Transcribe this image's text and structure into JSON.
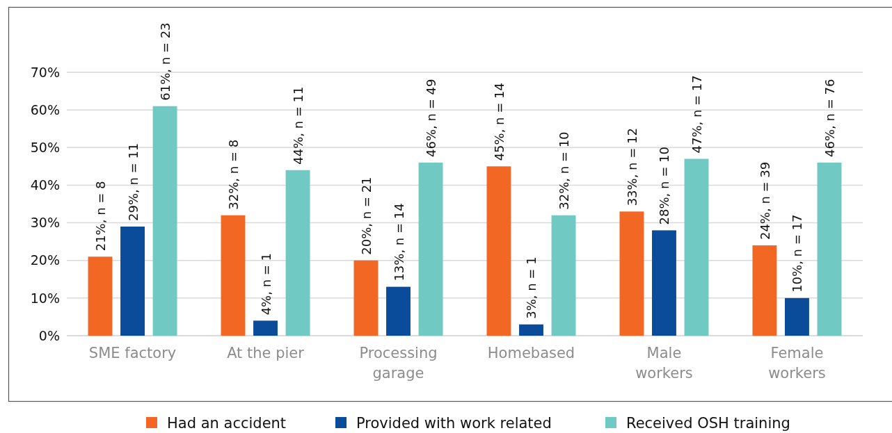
{
  "chart_data": {
    "type": "bar",
    "categories": [
      "SME factory",
      "At the pier",
      "Processing garage",
      "Homebased",
      "Male workers",
      "Female workers"
    ],
    "series": [
      {
        "name": "Had an accident",
        "color": "#f26724",
        "values": [
          21,
          32,
          20,
          45,
          33,
          24
        ],
        "value_labels": [
          "21%, n = 8",
          "32%, n = 8",
          "20%, n = 21",
          "45%, n = 14",
          "33%, n = 12",
          "24%, n = 39"
        ]
      },
      {
        "name": "Provided with work related",
        "color": "#0b4c9a",
        "values": [
          29,
          4,
          13,
          3,
          28,
          10
        ],
        "value_labels": [
          "29%, n = 11",
          "4%, n = 1",
          "13%, n = 14",
          "3%, n = 1",
          "28%, n = 10",
          "10%, n = 17"
        ]
      },
      {
        "name": "Received OSH training",
        "color": "#70c9c3",
        "values": [
          61,
          44,
          46,
          32,
          47,
          46
        ],
        "value_labels": [
          "61%, n = 23",
          "44%, n = 11",
          "46%, n = 49",
          "32%, n = 10",
          "47%, n = 17",
          "46%, n = 76"
        ]
      }
    ],
    "ylim": [
      0,
      70
    ],
    "yticks": [
      {
        "value": 0,
        "label": "0%"
      },
      {
        "value": 10,
        "label": "10%"
      },
      {
        "value": 20,
        "label": "20%"
      },
      {
        "value": 30,
        "label": "30%"
      },
      {
        "value": 40,
        "label": "40%"
      },
      {
        "value": 50,
        "label": "50%"
      },
      {
        "value": 60,
        "label": "60%"
      },
      {
        "value": 70,
        "label": "70%"
      }
    ],
    "grid": "y",
    "legend": "bottom"
  }
}
